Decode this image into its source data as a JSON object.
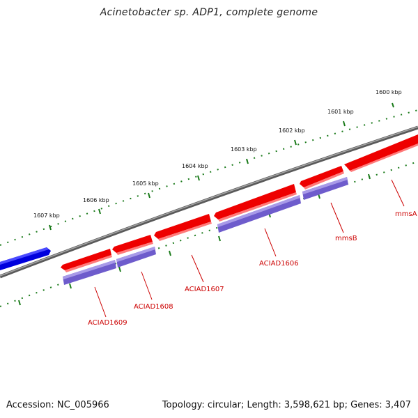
{
  "title": "Acinetobacter sp. ADP1, complete genome",
  "footer": {
    "accession_label": "Accession:",
    "accession": "NC_005966",
    "summary": "Topology: circular; Length: 3,598,621 bp; Genes: 3,407"
  },
  "kbp_ticks": [
    "1600 kbp",
    "1601 kbp",
    "1602 kbp",
    "1603 kbp",
    "1604 kbp",
    "1605 kbp",
    "1606 kbp",
    "1607 kbp"
  ],
  "gene_labels": [
    "mmsA",
    "mmsB",
    "ACIAD1606",
    "ACIAD1607",
    "ACIAD1608",
    "ACIAD1609"
  ],
  "colors": {
    "forward_gene": "#ee0000",
    "cds": "#7060c8",
    "other_strand_gene": "#0000dd",
    "backbone": "#808080",
    "tick": "#1a7a1a",
    "label": "#cc0000"
  }
}
